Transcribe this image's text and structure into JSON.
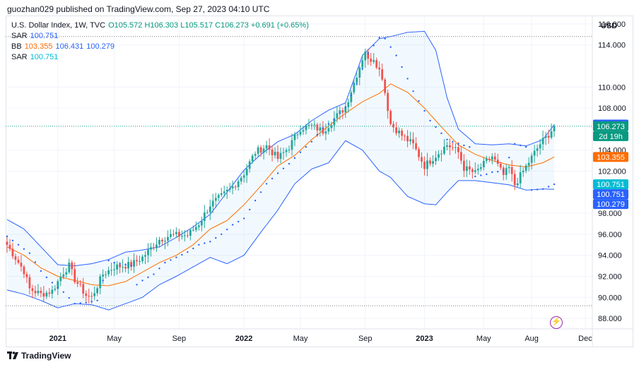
{
  "header": {
    "published": "guozhan029 published on TradingView.com, Sep 27, 2023 04:10 UTC"
  },
  "legend": {
    "symbol": "U.S. Dollar Index, 1W, TVC",
    "ohlc": "O105.572 H106.303 L105.517 C106.273 +0.691 (+0.65%)",
    "sar1_label": "SAR",
    "sar1_value": "100.751",
    "bb_label": "BB",
    "bb_basis": "103.355",
    "bb_upper": "106.431",
    "bb_lower": "100.279",
    "sar2_label": "SAR",
    "sar2_value": "100.751"
  },
  "axis": {
    "currency": "USD"
  },
  "footer": {
    "brand": "TradingView"
  },
  "colors": {
    "up": "#26a69a",
    "down": "#ef5350",
    "bb_basis": "#ff6d00",
    "bb_band": "#2962ff",
    "sar": "#2962ff",
    "price_tag": "#089981"
  },
  "chart_data": {
    "type": "candlestick",
    "title": "U.S. Dollar Index, 1W, TVC",
    "ylabel": "USD",
    "ylim": [
      87.0,
      116.8
    ],
    "yticks": [
      "116.000",
      "114.000",
      "110.000",
      "108.000",
      "104.000",
      "102.000",
      "98.000",
      "96.000",
      "94.000",
      "92.000",
      "90.000",
      "88.000"
    ],
    "xticks": [
      "2021",
      "May",
      "Sep",
      "2022",
      "May",
      "Sep",
      "2023",
      "May",
      "Aug",
      "Dec"
    ],
    "price_labels": [
      {
        "text": "106.431",
        "kind": "bb"
      },
      {
        "text": "106.273",
        "kind": "price"
      },
      {
        "text": "2d 19h",
        "kind": "price"
      },
      {
        "text": "103.355",
        "kind": "basis"
      },
      {
        "text": "100.751",
        "kind": "sar"
      },
      {
        "text": "100.751",
        "kind": "bb"
      },
      {
        "text": "100.279",
        "kind": "bb"
      }
    ],
    "reference_lines": [
      114.8,
      89.2
    ],
    "current_price": 106.273,
    "closes_anchor": [
      [
        0,
        95.0
      ],
      [
        6,
        92.5
      ],
      [
        8,
        90.8
      ],
      [
        12,
        90.3
      ],
      [
        16,
        90.6
      ],
      [
        20,
        92.4
      ],
      [
        22,
        93.0
      ],
      [
        24,
        91.7
      ],
      [
        28,
        90.2
      ],
      [
        30,
        90.0
      ],
      [
        34,
        92.2
      ],
      [
        38,
        92.9
      ],
      [
        44,
        93.1
      ],
      [
        48,
        93.8
      ],
      [
        54,
        95.5
      ],
      [
        58,
        95.9
      ],
      [
        64,
        95.9
      ],
      [
        68,
        97.0
      ],
      [
        72,
        98.8
      ],
      [
        76,
        99.6
      ],
      [
        80,
        100.5
      ],
      [
        84,
        101.8
      ],
      [
        88,
        103.8
      ],
      [
        92,
        104.4
      ],
      [
        96,
        103.2
      ],
      [
        100,
        104.3
      ],
      [
        104,
        106.1
      ],
      [
        108,
        106.3
      ],
      [
        112,
        105.8
      ],
      [
        116,
        107.0
      ],
      [
        120,
        108.1
      ],
      [
        124,
        111.2
      ],
      [
        127,
        113.5
      ],
      [
        128,
        112.5
      ],
      [
        130,
        112.8
      ],
      [
        133,
        111.0
      ],
      [
        136,
        106.5
      ],
      [
        140,
        105.4
      ],
      [
        144,
        104.5
      ],
      [
        148,
        102.5
      ],
      [
        152,
        103.5
      ],
      [
        156,
        104.5
      ],
      [
        158,
        104.2
      ],
      [
        160,
        103.8
      ],
      [
        162,
        102.3
      ],
      [
        166,
        101.8
      ],
      [
        168,
        102.4
      ],
      [
        172,
        103.4
      ],
      [
        176,
        101.6
      ],
      [
        178,
        102.3
      ],
      [
        180,
        100.7
      ],
      [
        183,
        102.0
      ],
      [
        186,
        103.3
      ],
      [
        189,
        104.6
      ],
      [
        192,
        105.5
      ],
      [
        194,
        106.27
      ]
    ],
    "bb_basis_anchor": [
      [
        0,
        94.8
      ],
      [
        6,
        94.0
      ],
      [
        12,
        92.8
      ],
      [
        18,
        92.0
      ],
      [
        24,
        91.6
      ],
      [
        30,
        91.2
      ],
      [
        36,
        91.1
      ],
      [
        42,
        91.5
      ],
      [
        48,
        92.4
      ],
      [
        54,
        93.3
      ],
      [
        60,
        94.0
      ],
      [
        66,
        95.0
      ],
      [
        72,
        96.5
      ],
      [
        78,
        97.3
      ],
      [
        84,
        98.8
      ],
      [
        90,
        100.6
      ],
      [
        96,
        102.5
      ],
      [
        102,
        103.5
      ],
      [
        108,
        105.0
      ],
      [
        114,
        106.3
      ],
      [
        120,
        107.5
      ],
      [
        126,
        108.6
      ],
      [
        132,
        109.4
      ],
      [
        136,
        110.3
      ],
      [
        142,
        109.5
      ],
      [
        148,
        108.0
      ],
      [
        154,
        106.2
      ],
      [
        160,
        104.5
      ],
      [
        166,
        103.6
      ],
      [
        172,
        103.0
      ],
      [
        178,
        102.6
      ],
      [
        184,
        102.4
      ],
      [
        190,
        102.8
      ],
      [
        194,
        103.355
      ]
    ],
    "bb_upper_anchor": [
      [
        0,
        97.4
      ],
      [
        6,
        96.5
      ],
      [
        12,
        94.8
      ],
      [
        18,
        93.1
      ],
      [
        24,
        93.0
      ],
      [
        30,
        93.2
      ],
      [
        36,
        93.6
      ],
      [
        42,
        94.3
      ],
      [
        48,
        94.5
      ],
      [
        54,
        94.8
      ],
      [
        60,
        95.7
      ],
      [
        66,
        96.7
      ],
      [
        72,
        97.9
      ],
      [
        78,
        100.0
      ],
      [
        84,
        102.1
      ],
      [
        90,
        103.6
      ],
      [
        96,
        104.8
      ],
      [
        102,
        105.5
      ],
      [
        108,
        106.8
      ],
      [
        114,
        107.8
      ],
      [
        120,
        108.5
      ],
      [
        126,
        113.0
      ],
      [
        132,
        114.6
      ],
      [
        136,
        114.8
      ],
      [
        142,
        115.2
      ],
      [
        148,
        115.3
      ],
      [
        152,
        113.5
      ],
      [
        156,
        109.0
      ],
      [
        160,
        106.0
      ],
      [
        166,
        104.6
      ],
      [
        172,
        104.5
      ],
      [
        178,
        104.6
      ],
      [
        184,
        104.4
      ],
      [
        190,
        105.0
      ],
      [
        194,
        106.431
      ]
    ],
    "bb_lower_anchor": [
      [
        0,
        90.7
      ],
      [
        6,
        90.3
      ],
      [
        12,
        89.7
      ],
      [
        18,
        89.0
      ],
      [
        24,
        89.4
      ],
      [
        30,
        89.3
      ],
      [
        36,
        88.8
      ],
      [
        42,
        89.4
      ],
      [
        48,
        90.0
      ],
      [
        54,
        91.2
      ],
      [
        60,
        92.0
      ],
      [
        66,
        92.9
      ],
      [
        72,
        93.8
      ],
      [
        78,
        93.2
      ],
      [
        84,
        94.0
      ],
      [
        90,
        96.2
      ],
      [
        96,
        98.3
      ],
      [
        102,
        100.8
      ],
      [
        108,
        102.2
      ],
      [
        114,
        102.8
      ],
      [
        120,
        104.9
      ],
      [
        126,
        104.0
      ],
      [
        132,
        102.0
      ],
      [
        136,
        101.4
      ],
      [
        142,
        99.6
      ],
      [
        148,
        98.9
      ],
      [
        152,
        98.8
      ],
      [
        156,
        100.0
      ],
      [
        160,
        101.1
      ],
      [
        166,
        101.1
      ],
      [
        172,
        100.9
      ],
      [
        178,
        100.7
      ],
      [
        184,
        100.2
      ],
      [
        190,
        100.3
      ],
      [
        194,
        100.279
      ]
    ],
    "sar_anchor": [
      [
        0,
        95.8
      ],
      [
        8,
        94.2
      ],
      [
        12,
        92.5
      ],
      [
        14,
        91.9
      ],
      [
        18,
        90.9
      ],
      [
        20,
        90.5
      ],
      [
        24,
        89.4
      ],
      [
        28,
        89.5
      ],
      [
        32,
        89.7
      ],
      [
        36,
        93.5
      ],
      [
        38,
        93.3
      ],
      [
        44,
        93.0
      ],
      [
        46,
        91.2
      ],
      [
        48,
        91.6
      ],
      [
        52,
        92.2
      ],
      [
        56,
        93.3
      ],
      [
        60,
        93.8
      ],
      [
        64,
        94.3
      ],
      [
        68,
        95.0
      ],
      [
        72,
        95.3
      ],
      [
        76,
        96.0
      ],
      [
        80,
        96.9
      ],
      [
        84,
        97.5
      ],
      [
        88,
        99.2
      ],
      [
        92,
        100.8
      ],
      [
        96,
        101.8
      ],
      [
        100,
        102.7
      ],
      [
        104,
        103.8
      ],
      [
        108,
        104.8
      ],
      [
        112,
        106.1
      ],
      [
        116,
        106.9
      ],
      [
        120,
        108.1
      ],
      [
        124,
        110.3
      ],
      [
        128,
        113.2
      ],
      [
        132,
        114.7
      ],
      [
        134,
        114.6
      ],
      [
        138,
        113.0
      ],
      [
        142,
        110.8
      ],
      [
        144,
        109.6
      ],
      [
        150,
        106.8
      ],
      [
        156,
        105.0
      ],
      [
        160,
        104.6
      ],
      [
        164,
        104.3
      ],
      [
        166,
        101.5
      ],
      [
        170,
        101.7
      ],
      [
        172,
        101.9
      ],
      [
        176,
        102.0
      ],
      [
        180,
        104.6
      ],
      [
        184,
        104.3
      ],
      [
        186,
        100.2
      ],
      [
        190,
        100.3
      ],
      [
        194,
        100.751
      ]
    ]
  }
}
